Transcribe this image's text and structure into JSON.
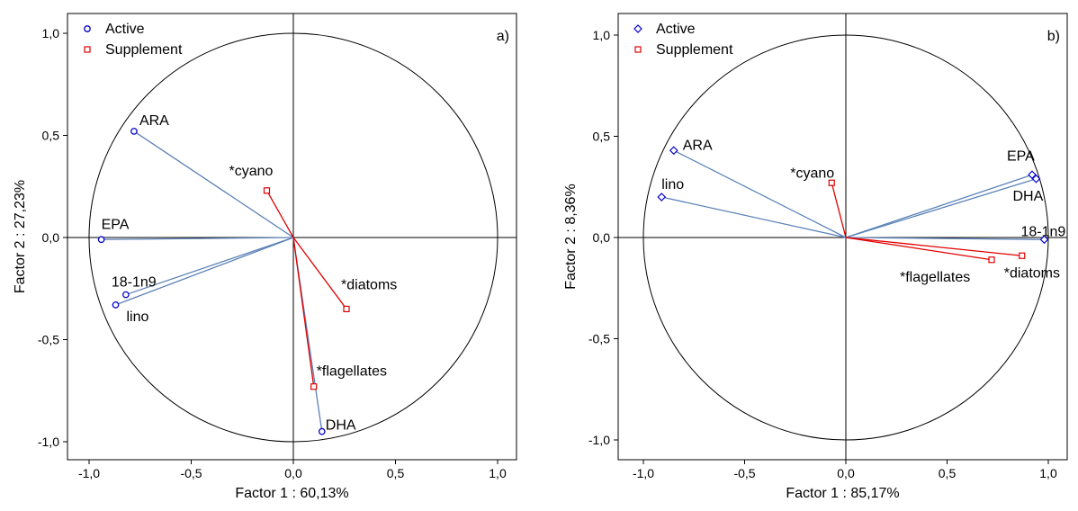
{
  "chart_data": [
    {
      "type": "scatter",
      "panel_label": "a)",
      "xlabel": "Factor 1 : 60,13%",
      "ylabel": "Factor 2 : 27,23%",
      "xlim": [
        -1.1,
        1.1
      ],
      "ylim": [
        -1.1,
        1.1
      ],
      "x_ticks": [
        "-1,0",
        "-0,5",
        "0,0",
        "0,5",
        "1,0"
      ],
      "y_ticks": [
        "1,0",
        "0,5",
        "0,0",
        "-0,5",
        "-1,0"
      ],
      "unit_circle": true,
      "legend": {
        "position": "top-left",
        "active_label": "Active",
        "supplement_label": "Supplement"
      },
      "series": [
        {
          "name": "Active",
          "color": "#0000cc",
          "line_color": "#5b82b8",
          "marker": "circle",
          "points": [
            {
              "label": "ARA",
              "x": -0.78,
              "y": 0.52
            },
            {
              "label": "EPA",
              "x": -0.94,
              "y": -0.01
            },
            {
              "label": "18-1n9",
              "x": -0.82,
              "y": -0.28
            },
            {
              "label": "lino",
              "x": -0.87,
              "y": -0.33
            },
            {
              "label": "DHA",
              "x": 0.14,
              "y": -0.95
            }
          ]
        },
        {
          "name": "Supplement",
          "color": "#e00000",
          "line_color": "#e00000",
          "marker": "square",
          "points": [
            {
              "label": "*cyano",
              "x": -0.13,
              "y": 0.23
            },
            {
              "label": "*diatoms",
              "x": 0.26,
              "y": -0.35
            },
            {
              "label": "*flagellates",
              "x": 0.1,
              "y": -0.73
            }
          ]
        }
      ]
    },
    {
      "type": "scatter",
      "panel_label": "b)",
      "xlabel": "Factor 1 : 85,17%",
      "ylabel": "Factor 2 : 8,36%",
      "xlim": [
        -1.1,
        1.1
      ],
      "ylim": [
        -1.1,
        1.1
      ],
      "x_ticks": [
        "-1,0",
        "-0,5",
        "0,0",
        "0,5",
        "1,0"
      ],
      "y_ticks": [
        "1,0",
        "0,5",
        "0,0",
        "-0,5",
        "-1,0"
      ],
      "unit_circle": true,
      "legend": {
        "position": "top-left",
        "active_label": "Active",
        "supplement_label": "Supplement"
      },
      "series": [
        {
          "name": "Active",
          "color": "#0000cc",
          "line_color": "#5b82b8",
          "marker": "diamond",
          "points": [
            {
              "label": "ARA",
              "x": -0.85,
              "y": 0.43
            },
            {
              "label": "lino",
              "x": -0.91,
              "y": 0.2
            },
            {
              "label": "EPA",
              "x": 0.92,
              "y": 0.31
            },
            {
              "label": "DHA",
              "x": 0.94,
              "y": 0.29
            },
            {
              "label": "18-1n9",
              "x": 0.98,
              "y": -0.01
            }
          ]
        },
        {
          "name": "Supplement",
          "color": "#e00000",
          "line_color": "#e00000",
          "marker": "square",
          "points": [
            {
              "label": "*cyano",
              "x": -0.07,
              "y": 0.27
            },
            {
              "label": "*flagellates",
              "x": 0.72,
              "y": -0.11
            },
            {
              "label": "*diatoms",
              "x": 0.87,
              "y": -0.09
            }
          ]
        }
      ]
    }
  ]
}
